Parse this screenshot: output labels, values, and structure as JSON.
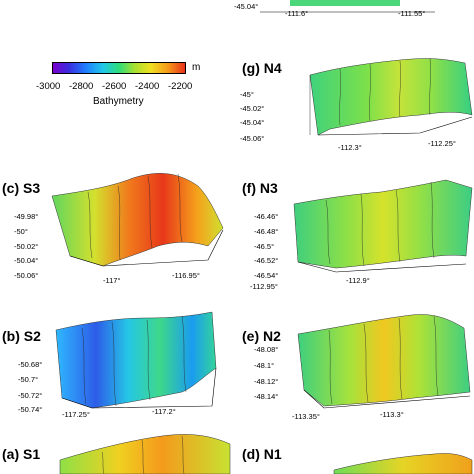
{
  "colorbar": {
    "unit": "m",
    "title": "Bathymetry",
    "ticks": [
      "-3000",
      "-2800",
      "-2600",
      "-2400",
      "-2200"
    ],
    "range": [
      -3000,
      -2200
    ]
  },
  "panels": {
    "h": {
      "x_ticks": [
        "-111.6°",
        "-111.55°"
      ],
      "y_ticks": [
        "-45.04°"
      ]
    },
    "g": {
      "label": "(g) N4",
      "y_ticks": [
        "-45°",
        "-45.02°",
        "-45.04°",
        "-45.06°"
      ],
      "x_ticks": [
        "-112.3°",
        "-112.25°"
      ]
    },
    "c": {
      "label": "(c) S3",
      "y_ticks": [
        "-49.98°",
        "-50°",
        "-50.02°",
        "-50.04°",
        "-50.06°"
      ],
      "x_ticks": [
        "-117°",
        "-116.95°"
      ]
    },
    "f": {
      "label": "(f) N3",
      "y_ticks": [
        "-46.46°",
        "-46.48°",
        "-46.5°",
        "-46.52°",
        "-46.54°"
      ],
      "x_ticks": [
        "-112.95°",
        "-112.9°"
      ]
    },
    "b": {
      "label": "(b) S2",
      "y_ticks": [
        "-50.68°",
        "-50.7°",
        "-50.72°",
        "-50.74°"
      ],
      "x_ticks": [
        "-117.25°",
        "-117.2°"
      ]
    },
    "e": {
      "label": "(e) N2",
      "y_ticks": [
        "-48.08°",
        "-48.1°",
        "-48.12°",
        "-48.14°"
      ],
      "x_ticks": [
        "-113.35°",
        "-113.3°"
      ]
    },
    "a": {
      "label": "(a) S1"
    },
    "d": {
      "label": "(d) N1"
    }
  }
}
